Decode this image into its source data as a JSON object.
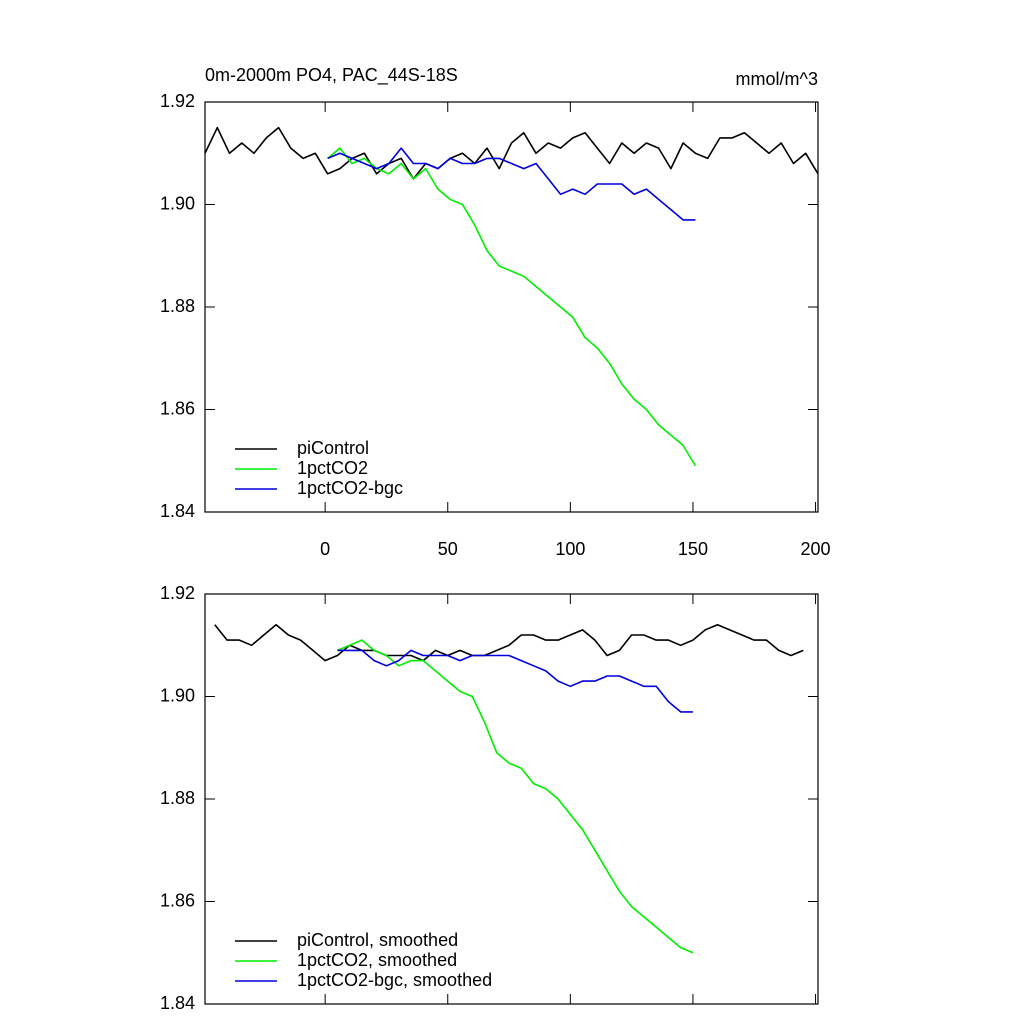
{
  "chart_data": [
    {
      "type": "line",
      "title": "0m-2000m PO4, PAC_44S-18S",
      "units": "mmol/m^3",
      "xlim": [
        -49,
        201
      ],
      "xticks": [
        0,
        50,
        100,
        150,
        200
      ],
      "xtick_labels": true,
      "ylim": [
        1.84,
        1.92
      ],
      "yticks": [
        {
          "value": 1.84,
          "label": "1.84"
        },
        {
          "value": 1.86,
          "label": "1.86"
        },
        {
          "value": 1.88,
          "label": "1.88"
        },
        {
          "value": 1.9,
          "label": "1.90"
        },
        {
          "value": 1.92,
          "label": "1.92"
        }
      ],
      "legend": "bottom-left",
      "series": [
        {
          "name": "piControl",
          "color": "#000000",
          "x": [
            -49,
            -44,
            -39,
            -34,
            -29,
            -24,
            -19,
            -14,
            -9,
            -4,
            1,
            6,
            11,
            16,
            21,
            26,
            31,
            36,
            41,
            46,
            51,
            56,
            61,
            66,
            71,
            76,
            81,
            86,
            91,
            96,
            101,
            106,
            111,
            116,
            121,
            126,
            131,
            136,
            141,
            146,
            151,
            156,
            161,
            166,
            171,
            176,
            181,
            186,
            191,
            196,
            201
          ],
          "values": [
            1.91,
            1.915,
            1.91,
            1.912,
            1.91,
            1.913,
            1.915,
            1.911,
            1.909,
            1.91,
            1.906,
            1.907,
            1.909,
            1.91,
            1.906,
            1.908,
            1.909,
            1.905,
            1.908,
            1.907,
            1.909,
            1.91,
            1.908,
            1.911,
            1.907,
            1.912,
            1.914,
            1.91,
            1.912,
            1.911,
            1.913,
            1.914,
            1.911,
            1.908,
            1.912,
            1.91,
            1.912,
            1.911,
            1.907,
            1.912,
            1.91,
            1.909,
            1.913,
            1.913,
            1.914,
            1.912,
            1.91,
            1.912,
            1.908,
            1.91,
            1.906
          ]
        },
        {
          "name": "1pctCO2",
          "color": "#00ee00",
          "x": [
            1,
            6,
            11,
            16,
            21,
            26,
            31,
            36,
            41,
            46,
            51,
            56,
            61,
            66,
            71,
            76,
            81,
            86,
            91,
            96,
            101,
            106,
            111,
            116,
            121,
            126,
            131,
            136,
            141,
            146,
            151
          ],
          "values": [
            1.909,
            1.911,
            1.908,
            1.909,
            1.907,
            1.906,
            1.908,
            1.905,
            1.907,
            1.903,
            1.901,
            1.9,
            1.896,
            1.891,
            1.888,
            1.887,
            1.886,
            1.884,
            1.882,
            1.88,
            1.878,
            1.874,
            1.872,
            1.869,
            1.865,
            1.862,
            1.86,
            1.857,
            1.855,
            1.853,
            1.849
          ]
        },
        {
          "name": "1pctCO2-bgc",
          "color": "#0000dd",
          "x": [
            1,
            6,
            11,
            16,
            21,
            26,
            31,
            36,
            41,
            46,
            51,
            56,
            61,
            66,
            71,
            76,
            81,
            86,
            91,
            96,
            101,
            106,
            111,
            116,
            121,
            126,
            131,
            136,
            141,
            146,
            151
          ],
          "values": [
            1.909,
            1.91,
            1.909,
            1.908,
            1.907,
            1.908,
            1.911,
            1.908,
            1.908,
            1.907,
            1.909,
            1.908,
            1.908,
            1.909,
            1.909,
            1.908,
            1.907,
            1.908,
            1.905,
            1.902,
            1.903,
            1.902,
            1.904,
            1.904,
            1.904,
            1.902,
            1.903,
            1.901,
            1.899,
            1.897,
            1.897
          ]
        }
      ]
    },
    {
      "type": "line",
      "xlim": [
        -49,
        201
      ],
      "xticks": [
        0,
        50,
        100,
        150,
        200
      ],
      "xtick_labels": false,
      "ylim": [
        1.84,
        1.92
      ],
      "yticks": [
        {
          "value": 1.84,
          "label": "1.84"
        },
        {
          "value": 1.86,
          "label": "1.86"
        },
        {
          "value": 1.88,
          "label": "1.88"
        },
        {
          "value": 1.9,
          "label": "1.90"
        },
        {
          "value": 1.92,
          "label": "1.92"
        }
      ],
      "legend": "bottom-left",
      "series": [
        {
          "name": "piControl, smoothed",
          "color": "#000000",
          "x": [
            -45,
            -40,
            -35,
            -30,
            -25,
            -20,
            -15,
            -10,
            -5,
            0,
            5,
            10,
            15,
            20,
            25,
            30,
            35,
            40,
            45,
            50,
            55,
            60,
            65,
            70,
            75,
            80,
            85,
            90,
            95,
            100,
            105,
            110,
            115,
            120,
            125,
            130,
            135,
            140,
            145,
            150,
            155,
            160,
            165,
            170,
            175,
            180,
            185,
            190,
            195
          ],
          "values": [
            1.914,
            1.911,
            1.911,
            1.91,
            1.912,
            1.914,
            1.912,
            1.911,
            1.909,
            1.907,
            1.908,
            1.91,
            1.909,
            1.909,
            1.908,
            1.908,
            1.908,
            1.907,
            1.909,
            1.908,
            1.909,
            1.908,
            1.908,
            1.909,
            1.91,
            1.912,
            1.912,
            1.911,
            1.911,
            1.912,
            1.913,
            1.911,
            1.908,
            1.909,
            1.912,
            1.912,
            1.911,
            1.911,
            1.91,
            1.911,
            1.913,
            1.914,
            1.913,
            1.912,
            1.911,
            1.911,
            1.909,
            1.908,
            1.909
          ]
        },
        {
          "name": "1pctCO2, smoothed",
          "color": "#00ee00",
          "x": [
            5,
            10,
            15,
            20,
            25,
            30,
            35,
            40,
            45,
            50,
            55,
            60,
            65,
            70,
            75,
            80,
            85,
            90,
            95,
            100,
            105,
            110,
            115,
            120,
            125,
            130,
            135,
            140,
            145,
            150
          ],
          "values": [
            1.909,
            1.91,
            1.911,
            1.909,
            1.908,
            1.906,
            1.907,
            1.907,
            1.905,
            1.903,
            1.901,
            1.9,
            1.895,
            1.889,
            1.887,
            1.886,
            1.883,
            1.882,
            1.88,
            1.877,
            1.874,
            1.87,
            1.866,
            1.862,
            1.859,
            1.857,
            1.855,
            1.853,
            1.851,
            1.85
          ]
        },
        {
          "name": "1pctCO2-bgc, smoothed",
          "color": "#0000dd",
          "x": [
            5,
            10,
            15,
            20,
            25,
            30,
            35,
            40,
            45,
            50,
            55,
            60,
            65,
            70,
            75,
            80,
            85,
            90,
            95,
            100,
            105,
            110,
            115,
            120,
            125,
            130,
            135,
            140,
            145,
            150
          ],
          "values": [
            1.909,
            1.909,
            1.909,
            1.907,
            1.906,
            1.907,
            1.909,
            1.908,
            1.908,
            1.908,
            1.907,
            1.908,
            1.908,
            1.908,
            1.908,
            1.907,
            1.906,
            1.905,
            1.903,
            1.902,
            1.903,
            1.903,
            1.904,
            1.904,
            1.903,
            1.902,
            1.902,
            1.899,
            1.897,
            1.897
          ]
        }
      ]
    }
  ]
}
